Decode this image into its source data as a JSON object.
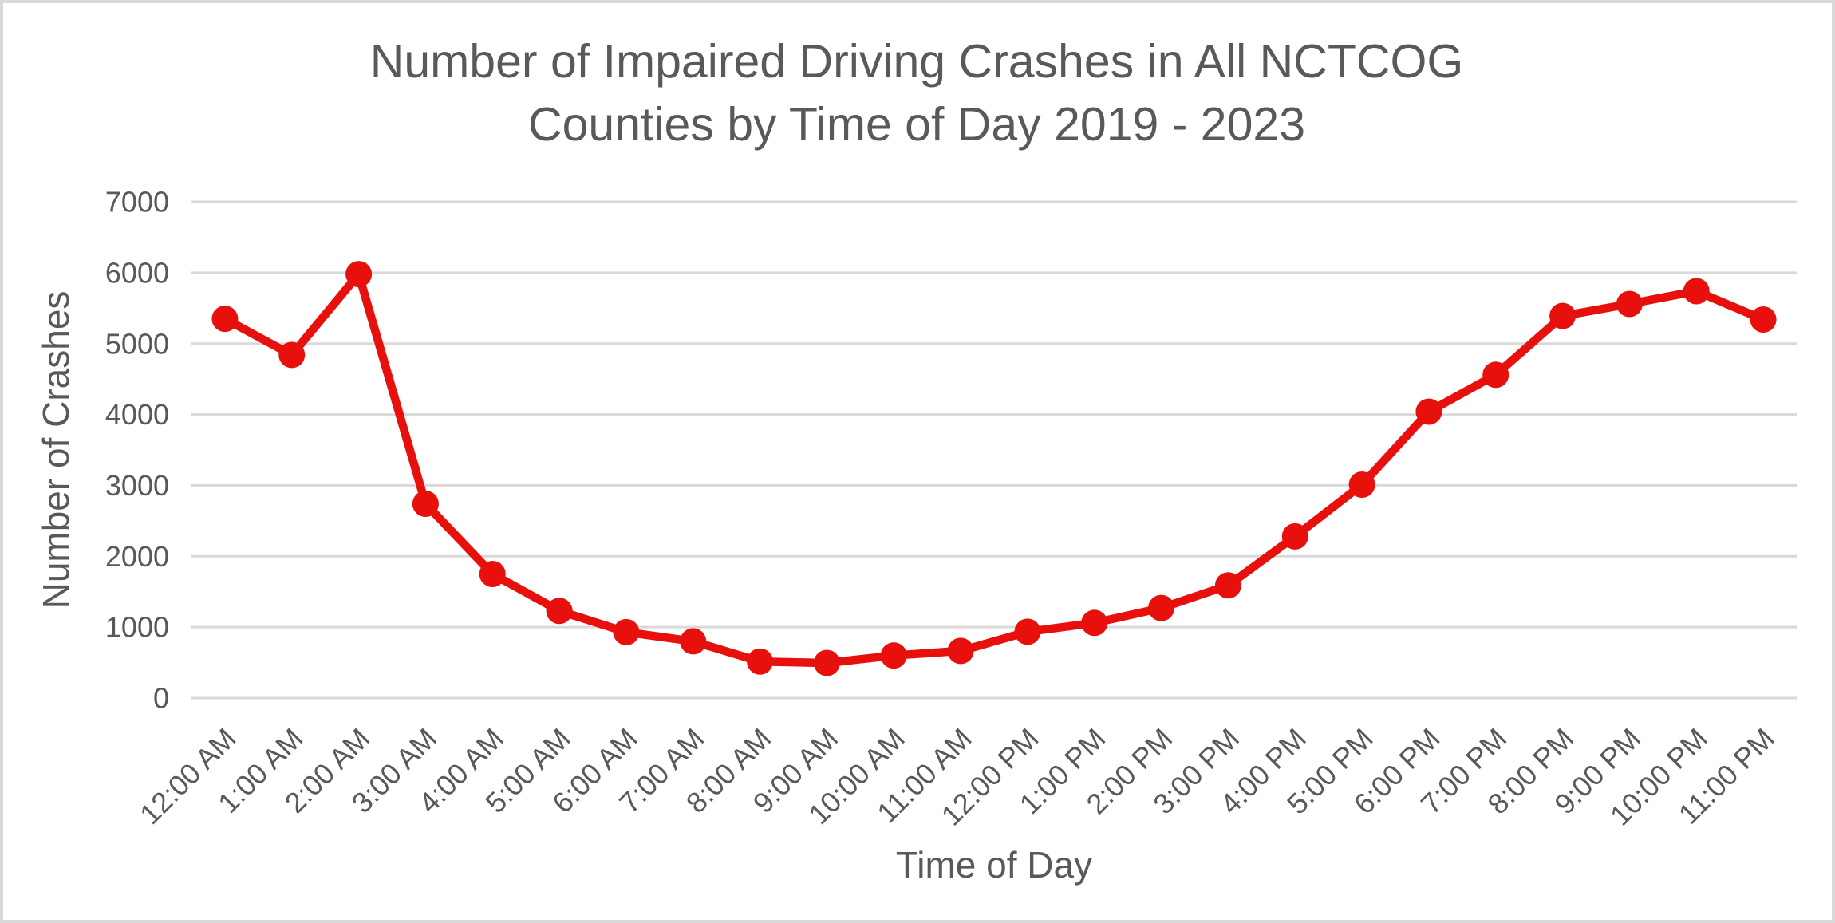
{
  "window": {
    "background": "#ffffff",
    "frame_border_color": "#d9d9d9"
  },
  "colors": {
    "series_line": "#e8100c",
    "gridline": "#d9d9d9",
    "text": "#595959",
    "background": "#ffffff"
  },
  "title": {
    "text": "Number of Impaired Driving Crashes in All NCTCOG Counties by Time of Day 2019 - 2023",
    "lines": [
      "Number of Impaired Driving Crashes in All NCTCOG",
      "Counties by Time of Day 2019 - 2023"
    ]
  },
  "chart_data": {
    "type": "line",
    "title": "Number of Impaired Driving Crashes in All NCTCOG Counties by Time of Day 2019 - 2023",
    "xlabel": "Time of Day",
    "ylabel": "Number of Crashes",
    "categories": [
      "12:00 AM",
      "1:00 AM",
      "2:00 AM",
      "3:00 AM",
      "4:00 AM",
      "5:00 AM",
      "6:00 AM",
      "7:00 AM",
      "8:00 AM",
      "9:00 AM",
      "10:00 AM",
      "11:00 AM",
      "12:00 PM",
      "1:00 PM",
      "2:00 PM",
      "3:00 PM",
      "4:00 PM",
      "5:00 PM",
      "6:00 PM",
      "7:00 PM",
      "8:00 PM",
      "9:00 PM",
      "10:00 PM",
      "11:00 PM"
    ],
    "values": [
      5350,
      4840,
      5980,
      2740,
      1750,
      1230,
      930,
      800,
      515,
      495,
      600,
      665,
      935,
      1060,
      1270,
      1590,
      2280,
      3010,
      4040,
      4560,
      5390,
      5560,
      5740,
      5340
    ],
    "ylim": [
      0,
      7000
    ],
    "ytick_interval": 1000,
    "ytick_labels": [
      "0",
      "1000",
      "2000",
      "3000",
      "4000",
      "5000",
      "6000",
      "7000"
    ],
    "grid": "horizontal-only",
    "legend": "none",
    "marker": "filled-circle",
    "x_label_rotation_deg": -45
  }
}
